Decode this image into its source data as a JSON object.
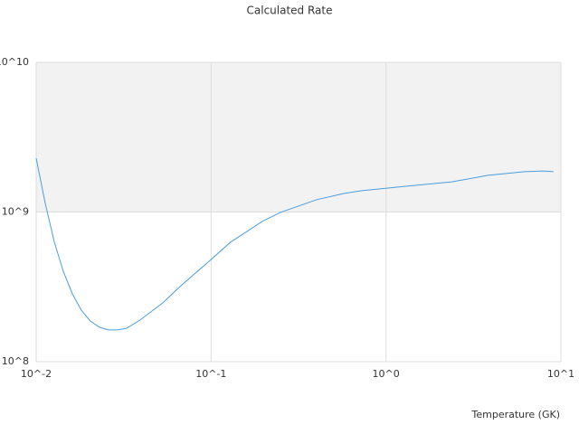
{
  "chart_data": {
    "type": "line",
    "title": "Calculated Rate",
    "x_label": "Temperature (GK)",
    "x": [
      0.01,
      0.01127,
      0.0127,
      0.0143,
      0.0161,
      0.0181,
      0.0204,
      0.023,
      0.0259,
      0.0292,
      0.0328,
      0.0393,
      0.0529,
      0.0672,
      0.0962,
      0.129,
      0.196,
      0.249,
      0.402,
      0.574,
      0.728,
      1.32,
      2.38,
      3.83,
      6.2,
      7.87,
      9.07
    ],
    "series": [
      {
        "color": "#4a9de0",
        "values": [
          2290000000,
          1140000000,
          630000000,
          400000000,
          284000000,
          221000000,
          187000000,
          170000000,
          163000000,
          163000000,
          167000000,
          190000000,
          247000000,
          322000000,
          463000000,
          628000000,
          865000000,
          994000000,
          1210000000,
          1330000000,
          1390000000,
          1490000000,
          1590000000,
          1760000000,
          1860000000,
          1880000000,
          1860000000
        ]
      }
    ],
    "xlim": [
      0.01,
      10
    ],
    "ylim": [
      100000000,
      10000000000
    ],
    "xticks": [
      {
        "value": 0.01,
        "label": "10^-2"
      },
      {
        "value": 0.1,
        "label": "10^-1"
      },
      {
        "value": 1,
        "label": "10^0"
      },
      {
        "value": 10,
        "label": "10^1"
      }
    ],
    "yticks": [
      {
        "value": 100000000,
        "label": "10^8"
      },
      {
        "value": 1000000000,
        "label": "10^9"
      },
      {
        "value": 10000000000,
        "label": "10^10"
      }
    ],
    "xscale": "log",
    "yscale": "log",
    "alternate_bands": true
  }
}
